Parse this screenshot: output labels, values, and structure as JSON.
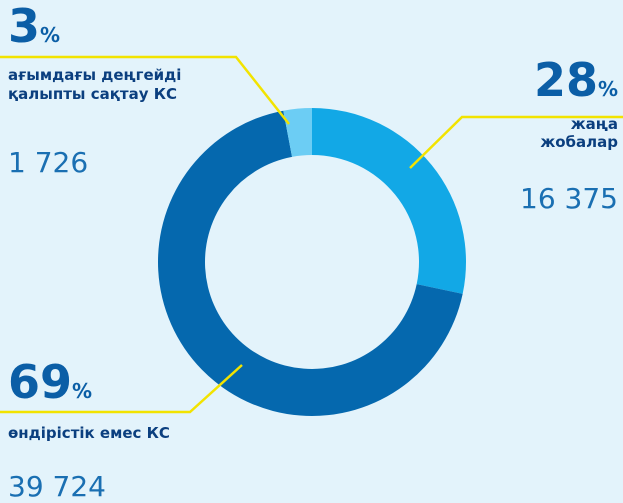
{
  "chart_data": {
    "type": "donut",
    "categories": [
      [
        "жаңа",
        "жобалар"
      ],
      [
        "өндірістік емес КС"
      ],
      [
        "ағымдағы деңгейді",
        "қалыпты сақтау КС"
      ]
    ],
    "values": [
      16375,
      39724,
      1726
    ],
    "value_labels": [
      "16 375",
      "39 724",
      "1 726"
    ],
    "percents": [
      28,
      69,
      3
    ],
    "unit": "%",
    "colors": [
      "#12a8e6",
      "#0568ae",
      "#6ccdf4"
    ]
  }
}
